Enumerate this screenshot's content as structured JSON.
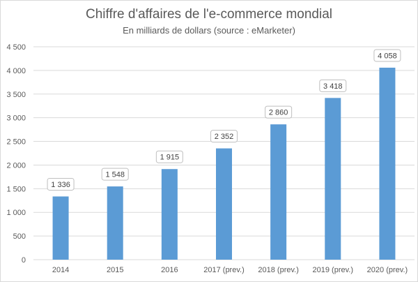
{
  "chart_data": {
    "type": "bar",
    "title": "Chiffre d'affaires de l'e-commerce mondial",
    "subtitle": "En milliards de dollars (source : eMarketer)",
    "categories": [
      "2014",
      "2015",
      "2016",
      "2017 (prev.)",
      "2018 (prev.)",
      "2019 (prev.)",
      "2020 (prev.)"
    ],
    "values": [
      1336,
      1548,
      1915,
      2352,
      2860,
      3418,
      4058
    ],
    "value_labels": [
      "1 336",
      "1 548",
      "1 915",
      "2 352",
      "2 860",
      "3 418",
      "4 058"
    ],
    "y_ticks": [
      "0",
      "500",
      "1 000",
      "1 500",
      "2 000",
      "2 500",
      "3 000",
      "3 500",
      "4 000",
      "4 500"
    ],
    "ylim": [
      0,
      4500
    ],
    "ystep": 500,
    "grid": true,
    "bar_color": "#5b9bd5",
    "grid_color": "#d9d9d9"
  }
}
